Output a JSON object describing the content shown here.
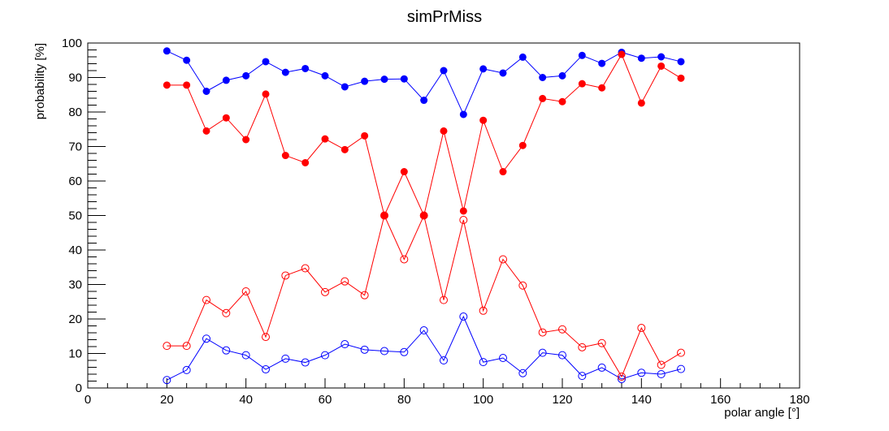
{
  "chart_data": {
    "type": "line",
    "title": "simPrMiss",
    "xlabel": "polar angle [°]",
    "ylabel": "probability [%]",
    "xlim": [
      0,
      180
    ],
    "ylim": [
      0,
      100
    ],
    "x_ticks": [
      0,
      20,
      40,
      60,
      80,
      100,
      120,
      140,
      160,
      180
    ],
    "y_ticks": [
      0,
      10,
      20,
      30,
      40,
      50,
      60,
      70,
      80,
      90,
      100
    ],
    "x": [
      20,
      25,
      30,
      35,
      40,
      45,
      50,
      55,
      60,
      65,
      70,
      75,
      80,
      85,
      90,
      95,
      100,
      105,
      110,
      115,
      120,
      125,
      130,
      135,
      140,
      145,
      150
    ],
    "grid": false,
    "series": [
      {
        "color": "#0000ff",
        "marker": "filled",
        "values": [
          97.7,
          95.0,
          86.0,
          89.2,
          90.5,
          94.6,
          91.5,
          92.6,
          90.5,
          87.3,
          88.9,
          89.5,
          89.6,
          83.4,
          92.0,
          79.3,
          92.5,
          91.3,
          95.9,
          90.0,
          90.5,
          96.4,
          94.1,
          97.3,
          95.6,
          96.0,
          94.6
        ]
      },
      {
        "color": "#0000ff",
        "marker": "open",
        "values": [
          2.3,
          5.2,
          14.3,
          10.9,
          9.5,
          5.4,
          8.5,
          7.4,
          9.5,
          12.7,
          11.1,
          10.7,
          10.4,
          16.7,
          8.0,
          20.7,
          7.5,
          8.7,
          4.3,
          10.2,
          9.5,
          3.5,
          5.9,
          2.6,
          4.4,
          4.0,
          5.5
        ]
      },
      {
        "color": "#ff0000",
        "marker": "filled",
        "values": [
          87.8,
          87.8,
          74.5,
          78.3,
          72.0,
          85.2,
          67.4,
          65.3,
          72.2,
          69.1,
          73.1,
          50.0,
          62.7,
          50.0,
          74.5,
          51.3,
          77.6,
          62.7,
          70.3,
          83.9,
          83.0,
          88.2,
          87.0,
          96.7,
          82.6,
          93.3,
          89.8
        ]
      },
      {
        "color": "#ff0000",
        "marker": "open",
        "values": [
          12.2,
          12.2,
          25.5,
          21.7,
          28.0,
          14.8,
          32.6,
          34.7,
          27.8,
          30.9,
          26.9,
          50.0,
          37.3,
          50.0,
          25.5,
          48.7,
          22.4,
          37.3,
          29.7,
          16.1,
          17.0,
          11.8,
          13.0,
          3.3,
          17.4,
          6.7,
          10.2
        ]
      }
    ]
  }
}
